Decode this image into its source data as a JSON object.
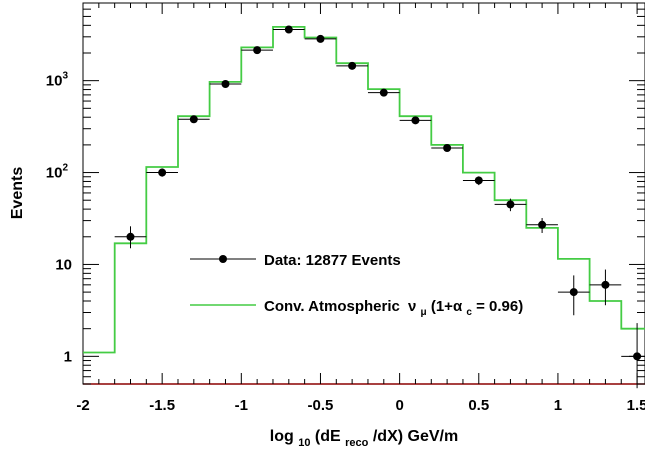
{
  "chart_data": {
    "type": "scatter",
    "title": "",
    "xlabel": {
      "main": "log",
      "sub1": "10",
      "mid": "(dE",
      "sub2": "reco",
      "end": "/dX) GeV/m"
    },
    "ylabel": "Events",
    "xlim": [
      -2,
      1.55
    ],
    "ylim": [
      0.5,
      7000
    ],
    "yscale": "log",
    "x_ticks": [
      -2,
      -1.5,
      -1,
      -0.5,
      0,
      0.5,
      1,
      1.5
    ],
    "x_tick_labels": [
      "-2",
      "-1.5",
      "-1",
      "-0.5",
      "0",
      "0.5",
      "1",
      "1.5"
    ],
    "y_ticks": [
      {
        "value": 1,
        "base": "1",
        "exp": ""
      },
      {
        "value": 10,
        "base": "10",
        "exp": ""
      },
      {
        "value": 100,
        "base": "10",
        "exp": "2"
      },
      {
        "value": 1000,
        "base": "10",
        "exp": "3"
      }
    ],
    "grid": false,
    "legend_position": "center-right",
    "series": [
      {
        "name": "Data: 12877 Events",
        "kind": "points_with_errors",
        "color": "#000000",
        "x": [
          -1.7,
          -1.5,
          -1.3,
          -1.1,
          -0.9,
          -0.7,
          -0.5,
          -0.3,
          -0.1,
          0.1,
          0.3,
          0.5,
          0.7,
          0.9,
          1.1,
          1.3,
          1.5
        ],
        "y": [
          20,
          100,
          380,
          920,
          2150,
          3600,
          2850,
          1450,
          740,
          370,
          185,
          82,
          45,
          27,
          5,
          6,
          1
        ],
        "y_err_low": [
          15,
          90,
          360,
          890,
          2100,
          3520,
          2780,
          1400,
          710,
          350,
          170,
          73,
          38,
          22,
          2.8,
          3.6,
          0.45
        ],
        "y_err_high": [
          26,
          111,
          400,
          950,
          2200,
          3680,
          2920,
          1490,
          770,
          390,
          200,
          91,
          52,
          32,
          7.6,
          8.8,
          2.3
        ]
      },
      {
        "name": "Conv. Atmospheric",
        "name_symbol": "ν",
        "name_symbol_sub": "μ",
        "name_suffix_a": "(1+α",
        "name_suffix_sub": "c",
        "name_suffix_b": "= 0.96)",
        "kind": "histogram",
        "color": "#44cc44",
        "bin_edges": [
          -2.0,
          -1.8,
          -1.6,
          -1.4,
          -1.2,
          -1.0,
          -0.8,
          -0.6,
          -0.4,
          -0.2,
          0.0,
          0.2,
          0.4,
          0.6,
          0.8,
          1.0,
          1.2,
          1.4,
          1.6
        ],
        "values": [
          1.1,
          17,
          115,
          410,
          970,
          2300,
          3850,
          2950,
          1550,
          810,
          410,
          200,
          100,
          50,
          25,
          11.5,
          4,
          2
        ]
      }
    ]
  }
}
